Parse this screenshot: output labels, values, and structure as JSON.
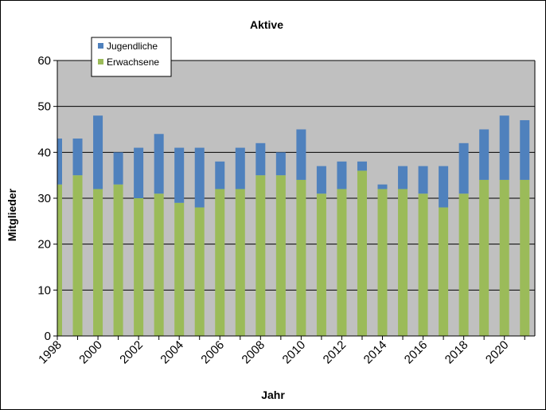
{
  "chart_data": {
    "type": "bar",
    "stacked": true,
    "title": "Aktive",
    "xlabel": "Jahr",
    "ylabel": "Mitglieder",
    "ylim": [
      0,
      60
    ],
    "yticks": [
      0,
      10,
      20,
      30,
      40,
      50,
      60
    ],
    "xticks_shown": [
      "1998",
      "2000",
      "2002",
      "2004",
      "2006",
      "2008",
      "2010",
      "2012",
      "2014",
      "2016",
      "2018",
      "2020"
    ],
    "grid": true,
    "plot_background": "#c0c0c0",
    "legend": "top-left",
    "categories": [
      "1998",
      "1999",
      "2000",
      "2001",
      "2002",
      "2003",
      "2004",
      "2005",
      "2006",
      "2007",
      "2008",
      "2009",
      "2010",
      "2011",
      "2012",
      "2013",
      "2014",
      "2015",
      "2016",
      "2017",
      "2018",
      "2019",
      "2020",
      "2021"
    ],
    "series": [
      {
        "name": "Erwachsene",
        "color": "#9bbb59",
        "values": [
          33,
          35,
          32,
          33,
          30,
          31,
          29,
          28,
          32,
          32,
          35,
          35,
          34,
          31,
          32,
          36,
          32,
          32,
          31,
          28,
          31,
          34,
          34,
          34
        ]
      },
      {
        "name": "Jugendliche",
        "color": "#4f81bd",
        "values": [
          10,
          8,
          16,
          7,
          11,
          13,
          12,
          13,
          6,
          9,
          7,
          5,
          11,
          6,
          6,
          2,
          1,
          5,
          6,
          9,
          11,
          11,
          14,
          13
        ]
      }
    ]
  }
}
